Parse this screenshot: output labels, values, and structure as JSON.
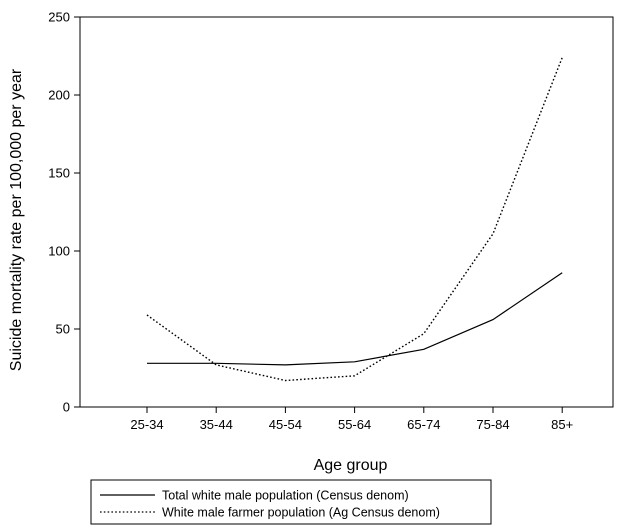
{
  "chart_data": {
    "type": "line",
    "categories": [
      "25-34",
      "35-44",
      "45-54",
      "55-64",
      "65-74",
      "75-84",
      "85+"
    ],
    "series": [
      {
        "name": "Total white male population (Census denom)",
        "style": "solid",
        "values": [
          28,
          28,
          27,
          29,
          37,
          56,
          86
        ]
      },
      {
        "name": "White male farmer population (Ag Census denom)",
        "style": "dotted",
        "values": [
          59,
          27,
          17,
          20,
          47,
          111,
          224
        ]
      }
    ],
    "xlabel": "Age group",
    "ylabel": "Suicide mortality rate per 100,000 per year",
    "ylim": [
      0,
      250
    ],
    "yticks": [
      0,
      50,
      100,
      150,
      200,
      250
    ],
    "grid": false,
    "legend_position": "bottom-left",
    "colors": {
      "line": "#000000",
      "background": "#ffffff"
    }
  }
}
